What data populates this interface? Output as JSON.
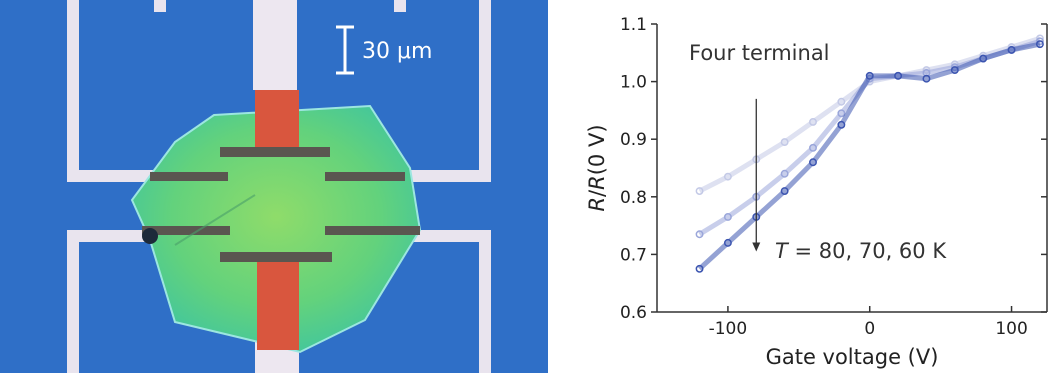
{
  "photo": {
    "scale_bar_label": "30 μm",
    "colors": {
      "substrate": "#2f6fc7",
      "flake": "#5fd07a",
      "electrode": "#e9e4ee",
      "gate": "#d9563e",
      "contact": "#5a5650"
    }
  },
  "chart_data": {
    "type": "scatter",
    "title": "",
    "annotation_label": "Four terminal",
    "temperature_label": "T = 80, 70, 60 K",
    "xlabel": "Gate voltage (V)",
    "ylabel": "R/R(0 V)",
    "xlim": [
      -150,
      125
    ],
    "ylim": [
      0.6,
      1.1
    ],
    "xticks": [
      -100,
      0,
      100
    ],
    "xtick_labels": [
      "-100",
      "0",
      "100"
    ],
    "yticks": [
      0.6,
      0.7,
      0.8,
      0.9,
      1.0,
      1.1
    ],
    "ytick_labels": [
      "0.6",
      "0.7",
      "0.8",
      "0.9",
      "1.0",
      "1.1"
    ],
    "grid": false,
    "series": [
      {
        "color": "#c3c9e6",
        "x": [
          -120,
          -100,
          -80,
          -60,
          -40,
          -20,
          0,
          20,
          40,
          60,
          80,
          100,
          120
        ],
        "y": [
          0.81,
          0.835,
          0.865,
          0.895,
          0.93,
          0.965,
          1.0,
          1.01,
          1.02,
          1.03,
          1.045,
          1.06,
          1.075
        ]
      },
      {
        "color": "#9aa6da",
        "x": [
          -120,
          -100,
          -80,
          -60,
          -40,
          -20,
          0,
          20,
          40,
          60,
          80,
          100,
          120
        ],
        "y": [
          0.735,
          0.765,
          0.8,
          0.84,
          0.885,
          0.945,
          1.005,
          1.01,
          1.015,
          1.025,
          1.04,
          1.055,
          1.07
        ]
      },
      {
        "color": "#3c55b0",
        "x": [
          -120,
          -100,
          -80,
          -60,
          -40,
          -20,
          0,
          20,
          40,
          60,
          80,
          100,
          120
        ],
        "y": [
          0.675,
          0.72,
          0.765,
          0.81,
          0.86,
          0.925,
          1.01,
          1.01,
          1.005,
          1.02,
          1.04,
          1.055,
          1.065
        ]
      }
    ],
    "arrow": {
      "x": -80,
      "y_start": 0.97,
      "y_end": 0.705
    }
  }
}
